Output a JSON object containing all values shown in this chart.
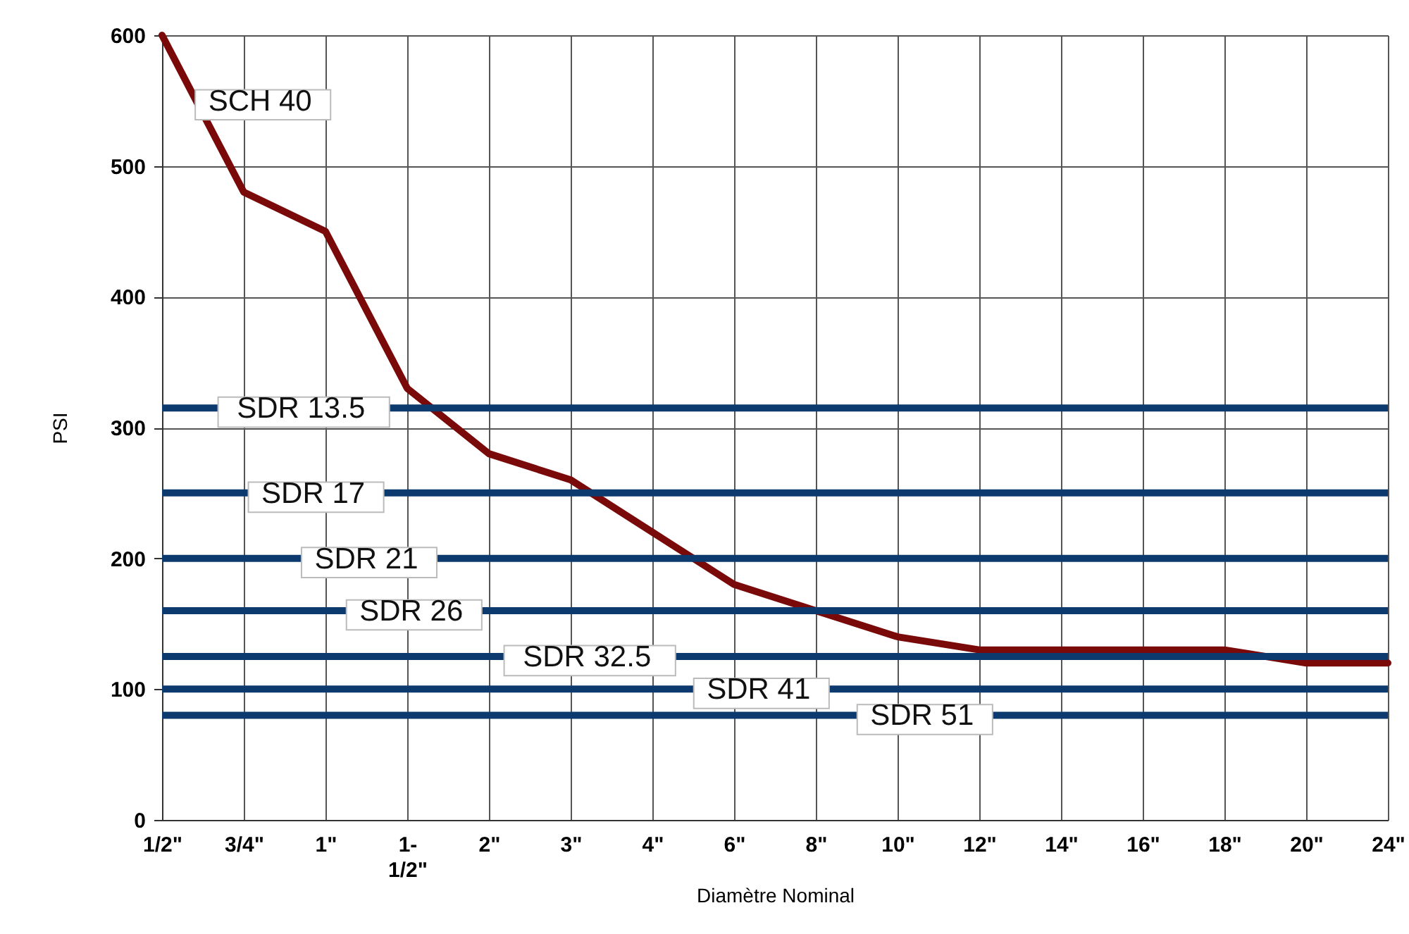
{
  "chart_data": {
    "type": "line",
    "xlabel": "Diamètre Nominal",
    "ylabel": "PSI",
    "categories": [
      "1/2\"",
      "3/4\"",
      "1\"",
      "1-1/2\"",
      "2\"",
      "3\"",
      "4\"",
      "6\"",
      "8\"",
      "10\"",
      "12\"",
      "14\"",
      "16\"",
      "18\"",
      "20\"",
      "24\""
    ],
    "series": [
      {
        "name": "SCH 40",
        "color": "#7a0a0a",
        "values": [
          600,
          480,
          450,
          330,
          280,
          260,
          220,
          180,
          160,
          140,
          130,
          130,
          130,
          130,
          120,
          120
        ]
      }
    ],
    "ref_lines": [
      {
        "axis": "y",
        "value": 315,
        "label": "SDR 13.5",
        "color": "#0d3a6e"
      },
      {
        "axis": "y",
        "value": 250,
        "label": "SDR 17",
        "color": "#0d3a6e"
      },
      {
        "axis": "y",
        "value": 200,
        "label": "SDR 21",
        "color": "#0d3a6e"
      },
      {
        "axis": "y",
        "value": 160,
        "label": "SDR 26",
        "color": "#0d3a6e"
      },
      {
        "axis": "y",
        "value": 125,
        "label": "SDR 32.5",
        "color": "#0d3a6e"
      },
      {
        "axis": "y",
        "value": 100,
        "label": "SDR 41",
        "color": "#0d3a6e"
      },
      {
        "axis": "y",
        "value": 80,
        "label": "SDR 51",
        "color": "#0d3a6e"
      }
    ],
    "ylim": [
      0,
      600
    ],
    "yticks": [
      0,
      100,
      200,
      300,
      400,
      500,
      600
    ],
    "grid": true,
    "marker": "none",
    "line_style": "solid"
  }
}
